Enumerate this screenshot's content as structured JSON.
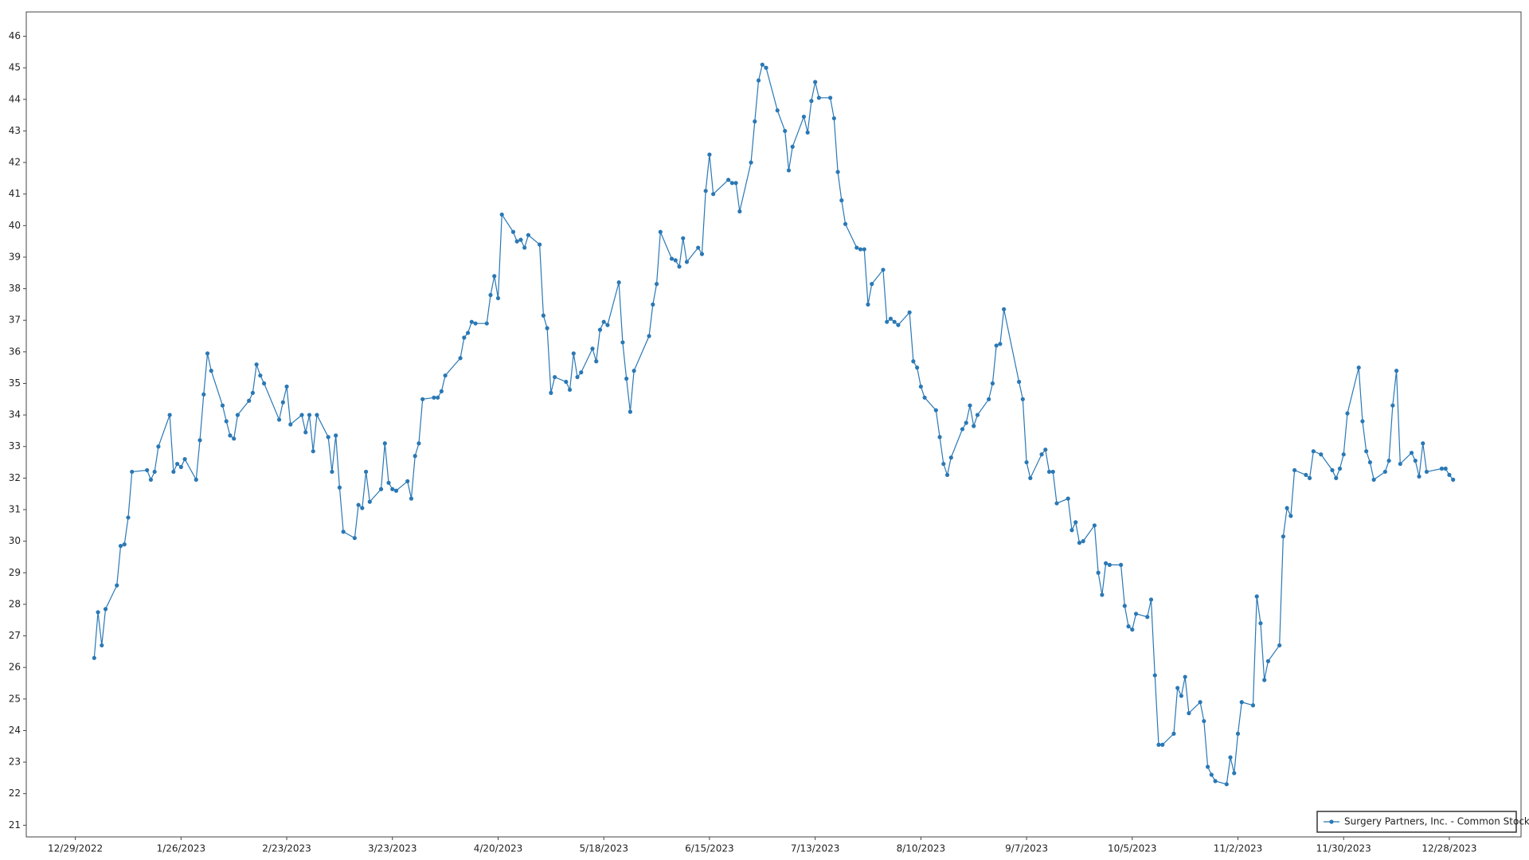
{
  "chart_data": {
    "type": "line",
    "x": [
      "1/3/2023",
      "1/4/2023",
      "1/5/2023",
      "1/6/2023",
      "1/9/2023",
      "1/10/2023",
      "1/11/2023",
      "1/12/2023",
      "1/13/2023",
      "1/17/2023",
      "1/18/2023",
      "1/19/2023",
      "1/20/2023",
      "1/23/2023",
      "1/24/2023",
      "1/25/2023",
      "1/26/2023",
      "1/27/2023",
      "1/30/2023",
      "1/31/2023",
      "2/1/2023",
      "2/2/2023",
      "2/3/2023",
      "2/6/2023",
      "2/7/2023",
      "2/8/2023",
      "2/9/2023",
      "2/10/2023",
      "2/13/2023",
      "2/14/2023",
      "2/15/2023",
      "2/16/2023",
      "2/17/2023",
      "2/21/2023",
      "2/22/2023",
      "2/23/2023",
      "2/24/2023",
      "2/27/2023",
      "2/28/2023",
      "3/1/2023",
      "3/2/2023",
      "3/3/2023",
      "3/6/2023",
      "3/7/2023",
      "3/8/2023",
      "3/9/2023",
      "3/10/2023",
      "3/13/2023",
      "3/14/2023",
      "3/15/2023",
      "3/16/2023",
      "3/17/2023",
      "3/20/2023",
      "3/21/2023",
      "3/22/2023",
      "3/23/2023",
      "3/24/2023",
      "3/27/2023",
      "3/28/2023",
      "3/29/2023",
      "3/30/2023",
      "3/31/2023",
      "4/3/2023",
      "4/4/2023",
      "4/5/2023",
      "4/6/2023",
      "4/10/2023",
      "4/11/2023",
      "4/12/2023",
      "4/13/2023",
      "4/14/2023",
      "4/17/2023",
      "4/18/2023",
      "4/19/2023",
      "4/20/2023",
      "4/21/2023",
      "4/24/2023",
      "4/25/2023",
      "4/26/2023",
      "4/27/2023",
      "4/28/2023",
      "5/1/2023",
      "5/2/2023",
      "5/3/2023",
      "5/4/2023",
      "5/5/2023",
      "5/8/2023",
      "5/9/2023",
      "5/10/2023",
      "5/11/2023",
      "5/12/2023",
      "5/15/2023",
      "5/16/2023",
      "5/17/2023",
      "5/18/2023",
      "5/19/2023",
      "5/22/2023",
      "5/23/2023",
      "5/24/2023",
      "5/25/2023",
      "5/26/2023",
      "5/30/2023",
      "5/31/2023",
      "6/1/2023",
      "6/2/2023",
      "6/5/2023",
      "6/6/2023",
      "6/7/2023",
      "6/8/2023",
      "6/9/2023",
      "6/12/2023",
      "6/13/2023",
      "6/14/2023",
      "6/15/2023",
      "6/16/2023",
      "6/20/2023",
      "6/21/2023",
      "6/22/2023",
      "6/23/2023",
      "6/26/2023",
      "6/27/2023",
      "6/28/2023",
      "6/29/2023",
      "6/30/2023",
      "7/3/2023",
      "7/5/2023",
      "7/6/2023",
      "7/7/2023",
      "7/10/2023",
      "7/11/2023",
      "7/12/2023",
      "7/13/2023",
      "7/14/2023",
      "7/17/2023",
      "7/18/2023",
      "7/19/2023",
      "7/20/2023",
      "7/21/2023",
      "7/24/2023",
      "7/25/2023",
      "7/26/2023",
      "7/27/2023",
      "7/28/2023",
      "7/31/2023",
      "8/1/2023",
      "8/2/2023",
      "8/3/2023",
      "8/4/2023",
      "8/7/2023",
      "8/8/2023",
      "8/9/2023",
      "8/10/2023",
      "8/11/2023",
      "8/14/2023",
      "8/15/2023",
      "8/16/2023",
      "8/17/2023",
      "8/18/2023",
      "8/21/2023",
      "8/22/2023",
      "8/23/2023",
      "8/24/2023",
      "8/25/2023",
      "8/28/2023",
      "8/29/2023",
      "8/30/2023",
      "8/31/2023",
      "9/1/2023",
      "9/5/2023",
      "9/6/2023",
      "9/7/2023",
      "9/8/2023",
      "9/11/2023",
      "9/12/2023",
      "9/13/2023",
      "9/14/2023",
      "9/15/2023",
      "9/18/2023",
      "9/19/2023",
      "9/20/2023",
      "9/21/2023",
      "9/22/2023",
      "9/25/2023",
      "9/26/2023",
      "9/27/2023",
      "9/28/2023",
      "9/29/2023",
      "10/2/2023",
      "10/3/2023",
      "10/4/2023",
      "10/5/2023",
      "10/6/2023",
      "10/9/2023",
      "10/10/2023",
      "10/11/2023",
      "10/12/2023",
      "10/13/2023",
      "10/16/2023",
      "10/17/2023",
      "10/18/2023",
      "10/19/2023",
      "10/20/2023",
      "10/23/2023",
      "10/24/2023",
      "10/25/2023",
      "10/26/2023",
      "10/27/2023",
      "10/30/2023",
      "10/31/2023",
      "11/1/2023",
      "11/2/2023",
      "11/3/2023",
      "11/6/2023",
      "11/7/2023",
      "11/8/2023",
      "11/9/2023",
      "11/10/2023",
      "11/13/2023",
      "11/14/2023",
      "11/15/2023",
      "11/16/2023",
      "11/17/2023",
      "11/20/2023",
      "11/21/2023",
      "11/22/2023",
      "11/24/2023",
      "11/27/2023",
      "11/28/2023",
      "11/29/2023",
      "11/30/2023",
      "12/1/2023",
      "12/4/2023",
      "12/5/2023",
      "12/6/2023",
      "12/7/2023",
      "12/8/2023",
      "12/11/2023",
      "12/12/2023",
      "12/13/2023",
      "12/14/2023",
      "12/15/2023",
      "12/18/2023",
      "12/19/2023",
      "12/20/2023",
      "12/21/2023",
      "12/22/2023",
      "12/26/2023",
      "12/27/2023",
      "12/28/2023",
      "12/29/2023"
    ],
    "series": [
      {
        "name": "Surgery Partners, Inc. - Common Stock",
        "color": "#2a78b5",
        "values": [
          26.3,
          27.75,
          26.7,
          27.85,
          28.6,
          29.85,
          29.9,
          30.75,
          32.2,
          32.25,
          31.95,
          32.2,
          33,
          34,
          32.2,
          32.45,
          32.35,
          32.6,
          31.95,
          33.2,
          34.65,
          35.95,
          35.4,
          34.3,
          33.8,
          33.35,
          33.25,
          34,
          34.45,
          34.7,
          35.6,
          35.25,
          35,
          33.85,
          34.4,
          34.9,
          33.7,
          34,
          33.45,
          34,
          32.85,
          34,
          33.3,
          32.2,
          33.35,
          31.7,
          30.3,
          30.1,
          31.15,
          31.05,
          32.2,
          31.25,
          31.65,
          33.1,
          31.85,
          31.65,
          31.6,
          31.9,
          31.35,
          32.7,
          33.1,
          34.5,
          34.55,
          34.55,
          34.75,
          35.25,
          35.8,
          36.45,
          36.6,
          36.95,
          36.9,
          36.9,
          37.8,
          38.4,
          37.7,
          40.35,
          39.8,
          39.5,
          39.55,
          39.3,
          39.7,
          39.4,
          37.15,
          36.75,
          34.7,
          35.2,
          35.05,
          34.8,
          35.95,
          35.2,
          35.35,
          36.1,
          35.7,
          36.7,
          36.95,
          36.85,
          38.2,
          36.3,
          35.15,
          34.1,
          35.4,
          36.5,
          37.5,
          38.15,
          39.8,
          38.95,
          38.9,
          38.7,
          39.6,
          38.85,
          39.3,
          39.1,
          41.1,
          42.25,
          41,
          41.45,
          41.35,
          41.35,
          40.45,
          42,
          43.3,
          44.6,
          45.1,
          45,
          43.65,
          43,
          41.75,
          42.5,
          43.45,
          42.95,
          43.95,
          44.55,
          44.05,
          44.05,
          43.4,
          41.7,
          40.8,
          40.05,
          39.3,
          39.25,
          39.25,
          37.5,
          38.15,
          38.6,
          36.95,
          37.05,
          36.95,
          36.85,
          37.25,
          35.7,
          35.5,
          34.9,
          34.55,
          34.15,
          33.3,
          32.45,
          32.1,
          32.65,
          33.55,
          33.75,
          34.3,
          33.65,
          34,
          34.5,
          35,
          36.2,
          36.25,
          37.35,
          35.05,
          34.5,
          32.5,
          32,
          32.75,
          32.9,
          32.2,
          32.2,
          31.2,
          31.35,
          30.35,
          30.6,
          29.95,
          30,
          30.5,
          29,
          28.3,
          29.3,
          29.25,
          29.25,
          27.95,
          27.3,
          27.2,
          27.7,
          27.6,
          28.15,
          25.75,
          23.55,
          23.55,
          23.9,
          25.35,
          25.1,
          25.7,
          24.55,
          24.9,
          24.3,
          22.85,
          22.6,
          22.4,
          22.3,
          23.15,
          22.65,
          23.9,
          24.9,
          24.8,
          28.25,
          27.4,
          25.6,
          26.2,
          26.7,
          30.15,
          31.05,
          30.8,
          32.25,
          32.1,
          32,
          32.85,
          32.75,
          32.25,
          32,
          32.3,
          32.75,
          34.05,
          35.5,
          33.8,
          32.85,
          32.5,
          31.95,
          32.2,
          32.55,
          34.3,
          35.4,
          32.45,
          32.8,
          32.55,
          32.05,
          33.1,
          32.2,
          32.3,
          32.3,
          32.1,
          31.95
        ]
      }
    ],
    "xlim": [
      "12/16/2022",
      "1/16/2024"
    ],
    "xticks": [
      "12/29/2022",
      "1/26/2023",
      "2/23/2023",
      "3/23/2023",
      "4/20/2023",
      "5/18/2023",
      "6/15/2023",
      "7/13/2023",
      "8/10/2023",
      "9/7/2023",
      "10/5/2023",
      "11/2/2023",
      "11/30/2023",
      "12/28/2023"
    ],
    "ylim": [
      20.63,
      46.77
    ],
    "yticks": [
      21,
      22,
      23,
      24,
      25,
      26,
      27,
      28,
      29,
      30,
      31,
      32,
      33,
      34,
      35,
      36,
      37,
      38,
      39,
      40,
      41,
      42,
      43,
      44,
      45,
      46
    ],
    "grid": true,
    "legend": "lower right"
  }
}
